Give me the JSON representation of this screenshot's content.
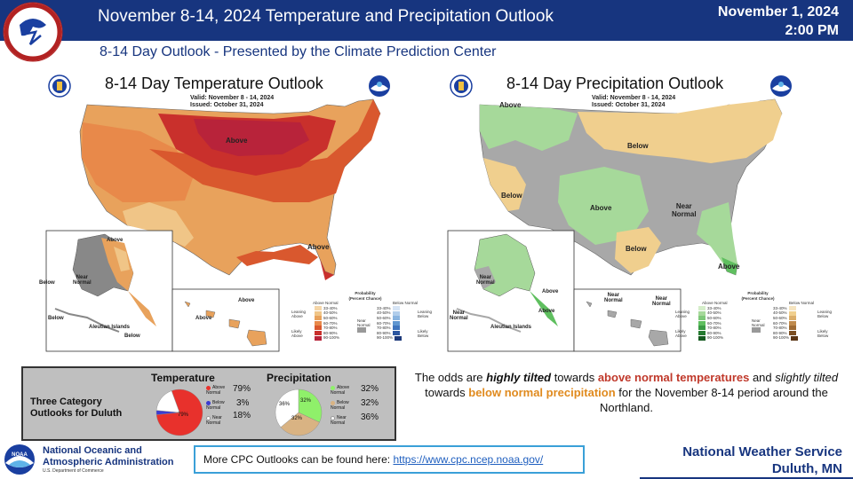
{
  "header": {
    "title": "November 8-14, 2024 Temperature  and Precipitation Outlook",
    "date": "November 1, 2024",
    "time": "2:00 PM",
    "bg_color": "#17357f"
  },
  "subtitle": "8-14 Day Outlook - Presented by the Climate Prediction Center",
  "temp_map": {
    "title": "8-14 Day Temperature Outlook",
    "valid": "Valid:  November 8 - 14, 2024",
    "issued": "Issued:  October 31, 2024",
    "labels": [
      "Above",
      "Above",
      "Above",
      "Below",
      "Near\nNormal",
      "Below",
      "Aleutian Islands",
      "Below",
      "Above",
      "Above"
    ],
    "legend_title": "Probability\n(Percent Chance)",
    "legend_cols": [
      "Above Normal",
      "Below Normal"
    ],
    "legend_rows": [
      "33-40%",
      "40-50%",
      "50-60%",
      "60-70%",
      "70-80%",
      "80-90%",
      "90-100%"
    ],
    "legend_side": [
      "Leaning Above",
      "Likely Above",
      "Near Normal",
      "Leaning Below",
      "Likely Below"
    ]
  },
  "precip_map": {
    "title": "8-14 Day Precipitation Outlook",
    "valid": "Valid:  November 8 - 14, 2024",
    "issued": "Issued:  October 31, 2024",
    "labels": [
      "Above",
      "Below",
      "Below",
      "Above",
      "Near\nNormal",
      "Below",
      "Above",
      "Above",
      "Near\nNormal",
      "Near\nNormal",
      "Above",
      "Aleutian Islands",
      "Near\nNormal",
      "Near\nNormal"
    ],
    "legend_title": "Probability\n(Percent Chance)",
    "legend_cols": [
      "Above Normal",
      "Below Normal"
    ],
    "legend_rows": [
      "33-40%",
      "40-50%",
      "50-60%",
      "60-70%",
      "70-80%",
      "80-90%",
      "90-100%"
    ],
    "legend_side": [
      "Leaning Above",
      "Likely Above",
      "Near Normal",
      "Leaning Below",
      "Likely Below"
    ]
  },
  "duluth": {
    "title": "Three Category\nOutlooks for Duluth",
    "temperature": {
      "title": "Temperature",
      "items": [
        {
          "label": "Above Normal",
          "value": "79%",
          "color": "#e8312c"
        },
        {
          "label": "Below Normal",
          "value": "3%",
          "color": "#3b3bd1"
        },
        {
          "label": "Near Normal",
          "value": "18%",
          "color": "#ffffff"
        }
      ],
      "inner": [
        "79%"
      ]
    },
    "precipitation": {
      "title": "Precipitation",
      "items": [
        {
          "label": "Above Normal",
          "value": "32%",
          "color": "#8ff06a"
        },
        {
          "label": "Below Normal",
          "value": "32%",
          "color": "#d9b383"
        },
        {
          "label": "Near Normal",
          "value": "36%",
          "color": "#ffffff"
        }
      ],
      "inner": [
        "32%",
        "36%",
        "32%"
      ]
    }
  },
  "summary": {
    "p1": "The odds are ",
    "p2": "highly tilted",
    "p3": " towards ",
    "p4": "above normal temperatures",
    "p5": " and ",
    "p6": "slightly tilted",
    "p7": " towards ",
    "p8": "below normal precipitation",
    "p9": " for the November 8-14 period around the Northland."
  },
  "footer": {
    "noaa_line1": "National Oceanic and",
    "noaa_line2": "Atmospheric Administration",
    "noaa_dept": "U.S. Department of Commerce",
    "more_text": "More CPC Outlooks can be found here: ",
    "more_link": "https://www.cpc.ncep.noaa.gov/",
    "nws_line1": "National Weather Service",
    "nws_line2": "Duluth, MN"
  }
}
